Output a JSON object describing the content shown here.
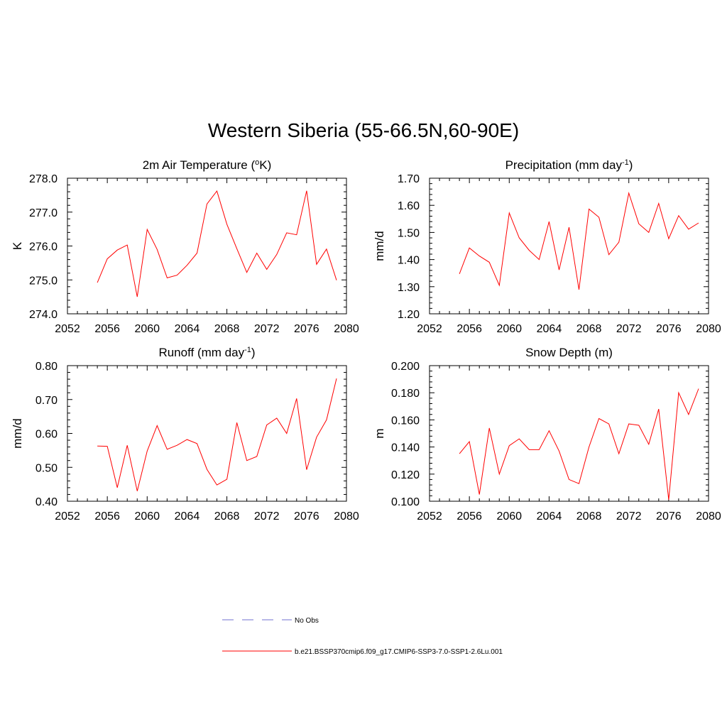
{
  "page": {
    "title": "Western Siberia (55-66.5N,60-90E)"
  },
  "colors": {
    "series": "#ff0000",
    "no_obs": "#a0a0e0",
    "axis": "#000000"
  },
  "legend": {
    "no_obs_label": "No Obs",
    "model_label": "b.e21.BSSP370cmip6.f09_g17.CMIP6-SSP3-7.0-SSP1-2.6Lu.001"
  },
  "chart_data": [
    {
      "type": "line",
      "title": "2m Air Temperature (",
      "title_sup": "o",
      "title_suffix": "K)",
      "ylabel": "K",
      "xlim": [
        2052,
        2080
      ],
      "ylim": [
        274.0,
        278.0
      ],
      "xticks": [
        "2052",
        "2056",
        "2060",
        "2064",
        "2068",
        "2072",
        "2076",
        "2080"
      ],
      "yticks": [
        "274.0",
        "275.0",
        "276.0",
        "277.0",
        "278.0"
      ],
      "x": [
        2055,
        2056,
        2057,
        2058,
        2059,
        2060,
        2061,
        2062,
        2063,
        2064,
        2065,
        2066,
        2067,
        2068,
        2069,
        2070,
        2071,
        2072,
        2073,
        2074,
        2075,
        2076,
        2077,
        2078,
        2079
      ],
      "values": [
        274.92,
        275.62,
        275.88,
        276.03,
        274.5,
        276.49,
        275.9,
        275.06,
        275.14,
        275.43,
        275.79,
        277.24,
        277.62,
        276.64,
        275.92,
        275.22,
        275.79,
        275.31,
        275.75,
        276.39,
        276.33,
        277.63,
        275.46,
        275.91,
        274.99
      ]
    },
    {
      "type": "line",
      "title": "Precipitation (mm day",
      "title_sup": "-1",
      "title_suffix": ")",
      "ylabel": "mm/d",
      "xlim": [
        2052,
        2080
      ],
      "ylim": [
        1.2,
        1.7
      ],
      "xticks": [
        "2052",
        "2056",
        "2060",
        "2064",
        "2068",
        "2072",
        "2076",
        "2080"
      ],
      "yticks": [
        "1.20",
        "1.30",
        "1.40",
        "1.50",
        "1.60",
        "1.70"
      ],
      "x": [
        2055,
        2056,
        2057,
        2058,
        2059,
        2060,
        2061,
        2062,
        2063,
        2064,
        2065,
        2066,
        2067,
        2068,
        2069,
        2070,
        2071,
        2072,
        2073,
        2074,
        2075,
        2076,
        2077,
        2078,
        2079
      ],
      "values": [
        1.347,
        1.443,
        1.413,
        1.39,
        1.305,
        1.572,
        1.48,
        1.434,
        1.4,
        1.54,
        1.362,
        1.519,
        1.289,
        1.586,
        1.556,
        1.418,
        1.464,
        1.645,
        1.532,
        1.5,
        1.607,
        1.477,
        1.562,
        1.512,
        1.535
      ]
    },
    {
      "type": "line",
      "title": "Runoff (mm day",
      "title_sup": "-1",
      "title_suffix": ")",
      "ylabel": "mm/d",
      "xlim": [
        2052,
        2080
      ],
      "ylim": [
        0.4,
        0.8
      ],
      "xticks": [
        "2052",
        "2056",
        "2060",
        "2064",
        "2068",
        "2072",
        "2076",
        "2080"
      ],
      "yticks": [
        "0.40",
        "0.50",
        "0.60",
        "0.70",
        "0.80"
      ],
      "x": [
        2055,
        2056,
        2057,
        2058,
        2059,
        2060,
        2061,
        2062,
        2063,
        2064,
        2065,
        2066,
        2067,
        2068,
        2069,
        2070,
        2071,
        2072,
        2073,
        2074,
        2075,
        2076,
        2077,
        2078,
        2079
      ],
      "values": [
        0.563,
        0.562,
        0.44,
        0.565,
        0.43,
        0.548,
        0.623,
        0.553,
        0.565,
        0.582,
        0.57,
        0.494,
        0.448,
        0.465,
        0.632,
        0.52,
        0.532,
        0.625,
        0.645,
        0.6,
        0.703,
        0.493,
        0.589,
        0.64,
        0.762
      ]
    },
    {
      "type": "line",
      "title": "Snow Depth (m)",
      "title_sup": "",
      "title_suffix": "",
      "ylabel": "m",
      "xlim": [
        2052,
        2080
      ],
      "ylim": [
        0.1,
        0.2
      ],
      "xticks": [
        "2052",
        "2056",
        "2060",
        "2064",
        "2068",
        "2072",
        "2076",
        "2080"
      ],
      "yticks": [
        "0.100",
        "0.120",
        "0.140",
        "0.160",
        "0.180",
        "0.200"
      ],
      "x": [
        2055,
        2056,
        2057,
        2058,
        2059,
        2060,
        2061,
        2062,
        2063,
        2064,
        2065,
        2066,
        2067,
        2068,
        2069,
        2070,
        2071,
        2072,
        2073,
        2074,
        2075,
        2076,
        2077,
        2078,
        2079
      ],
      "values": [
        0.135,
        0.144,
        0.105,
        0.154,
        0.12,
        0.141,
        0.146,
        0.138,
        0.138,
        0.152,
        0.137,
        0.116,
        0.113,
        0.14,
        0.161,
        0.157,
        0.135,
        0.157,
        0.156,
        0.142,
        0.168,
        0.101,
        0.18,
        0.164,
        0.183
      ]
    }
  ]
}
